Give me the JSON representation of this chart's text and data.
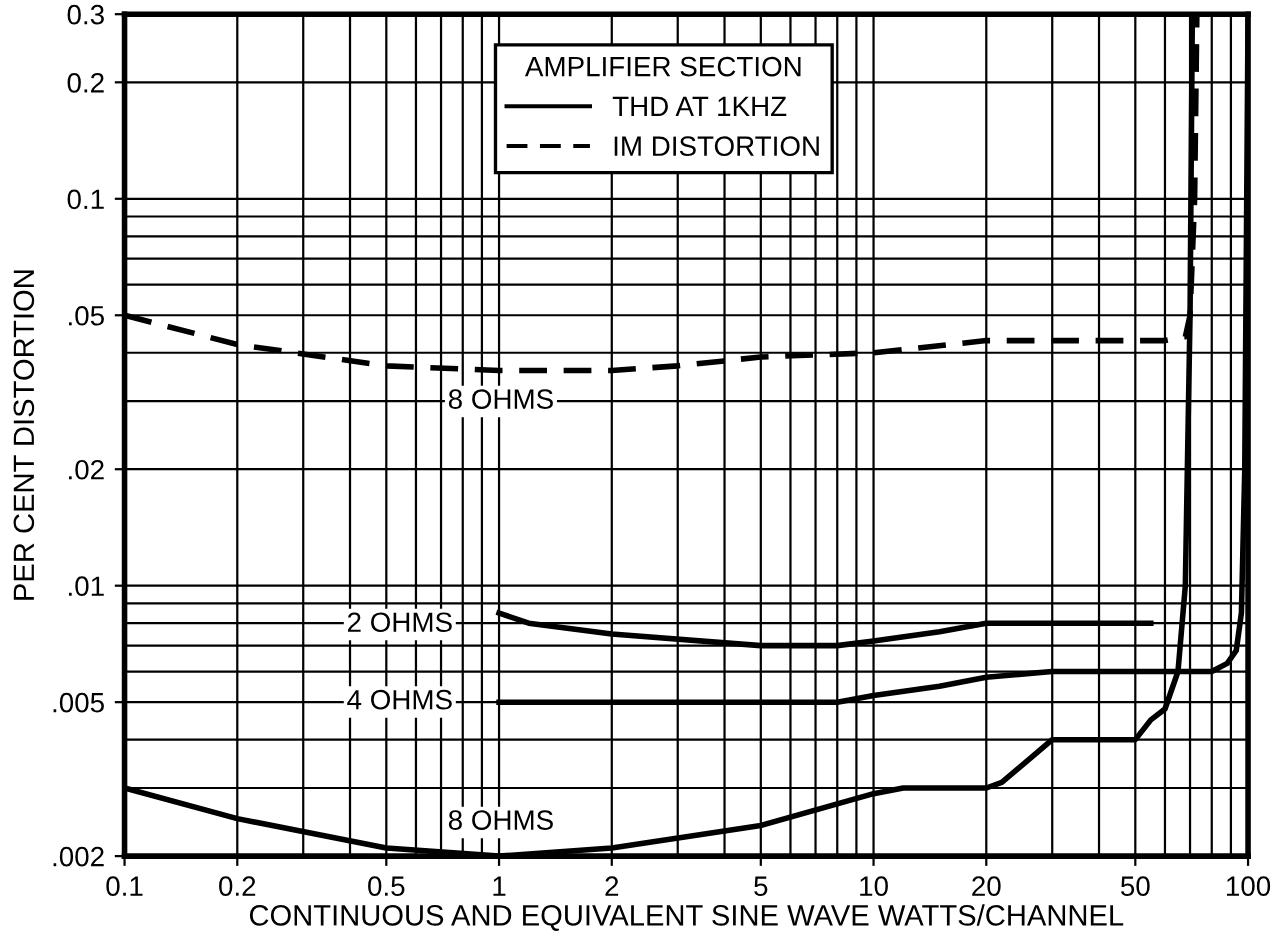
{
  "chart_data": {
    "type": "line",
    "xlabel": "CONTINUOUS AND EQUIVALENT SINE WAVE WATTS/CHANNEL",
    "ylabel": "PER CENT DISTORTION",
    "legend_title": "AMPLIFIER SECTION",
    "log": "xy",
    "xlim": [
      0.1,
      100
    ],
    "ylim": [
      0.002,
      0.3
    ],
    "xticks": [
      0.1,
      0.2,
      0.5,
      1,
      2,
      5,
      10,
      20,
      50,
      100
    ],
    "yticks": [
      {
        "value": 0.002,
        "label": ".002"
      },
      {
        "value": 0.005,
        "label": ".005"
      },
      {
        "value": 0.01,
        "label": ".01"
      },
      {
        "value": 0.02,
        "label": ".02"
      },
      {
        "value": 0.05,
        "label": ".05"
      },
      {
        "value": 0.1,
        "label": "0.1"
      },
      {
        "value": 0.2,
        "label": "0.2"
      },
      {
        "value": 0.3,
        "label": "0.3"
      }
    ],
    "grid": true,
    "legend": "top",
    "marker": "none",
    "series": [
      {
        "name": "THD AT 1KHZ",
        "color": "#000000",
        "line_style": "solid",
        "x": [
          1,
          1.2,
          2,
          5,
          8,
          10,
          15,
          20,
          30,
          55
        ],
        "values": [
          0.0085,
          0.008,
          0.0075,
          0.007,
          0.007,
          0.0072,
          0.0076,
          0.008,
          0.008,
          0.008
        ]
      },
      {
        "color": "#000000",
        "line_style": "solid",
        "x": [
          1,
          5,
          8,
          10,
          15,
          20,
          30,
          50,
          80,
          88,
          93,
          96,
          98,
          100
        ],
        "values": [
          0.005,
          0.005,
          0.005,
          0.0052,
          0.0055,
          0.0058,
          0.006,
          0.006,
          0.006,
          0.0063,
          0.0068,
          0.0085,
          0.02,
          0.3
        ]
      },
      {
        "color": "#000000",
        "line_style": "solid",
        "x": [
          0.1,
          0.2,
          0.5,
          1,
          2,
          5,
          10,
          12,
          20,
          22,
          30,
          50,
          55,
          60,
          65,
          68,
          70,
          71
        ],
        "values": [
          0.003,
          0.0025,
          0.0021,
          0.002,
          0.0021,
          0.0024,
          0.0029,
          0.003,
          0.003,
          0.0031,
          0.004,
          0.004,
          0.0045,
          0.0048,
          0.006,
          0.01,
          0.05,
          0.3
        ]
      },
      {
        "name": "IM DISTORTION",
        "color": "#000000",
        "line_style": "dashed",
        "x": [
          0.1,
          0.2,
          0.5,
          1,
          2,
          3,
          5,
          10,
          20,
          30,
          60,
          68,
          70,
          72,
          73
        ],
        "values": [
          0.05,
          0.042,
          0.037,
          0.036,
          0.036,
          0.037,
          0.039,
          0.04,
          0.043,
          0.043,
          0.043,
          0.044,
          0.05,
          0.1,
          0.3
        ]
      }
    ],
    "annotations": [
      "8 OHMS",
      "2 OHMS",
      "4 OHMS",
      "8 OHMS"
    ]
  }
}
